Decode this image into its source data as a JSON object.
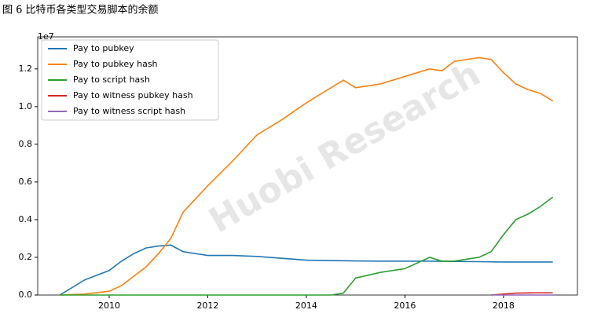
{
  "chart_data": {
    "type": "line",
    "title": "图 6 比特币各类型交易脚本的余额",
    "y_offset_label": "1e7",
    "watermark": "Huobi Research",
    "x": [
      2009,
      2009.5,
      2010,
      2010.25,
      2010.5,
      2010.75,
      2011,
      2011.25,
      2011.5,
      2011.75,
      2012,
      2012.5,
      2013,
      2013.5,
      2014,
      2014.5,
      2014.75,
      2015,
      2015.5,
      2016,
      2016.5,
      2016.75,
      2017,
      2017.5,
      2017.75,
      2018,
      2018.25,
      2018.5,
      2018.75,
      2019
    ],
    "series": [
      {
        "name": "Pay to pubkey",
        "color": "#1f77b4",
        "values": [
          0,
          0.08,
          0.13,
          0.18,
          0.22,
          0.25,
          0.26,
          0.265,
          0.23,
          0.22,
          0.21,
          0.21,
          0.205,
          0.195,
          0.185,
          0.183,
          0.182,
          0.181,
          0.18,
          0.18,
          0.18,
          0.179,
          0.178,
          0.177,
          0.176,
          0.175,
          0.175,
          0.175,
          0.175,
          0.175
        ]
      },
      {
        "name": "Pay to pubkey hash",
        "color": "#ff7f0e",
        "values": [
          0,
          0.005,
          0.02,
          0.05,
          0.1,
          0.15,
          0.22,
          0.3,
          0.44,
          0.51,
          0.58,
          0.71,
          0.85,
          0.93,
          1.02,
          1.1,
          1.14,
          1.1,
          1.12,
          1.16,
          1.2,
          1.19,
          1.24,
          1.26,
          1.25,
          1.18,
          1.12,
          1.09,
          1.07,
          1.03
        ]
      },
      {
        "name": "Pay to script hash",
        "color": "#2ca02c",
        "values": [
          0,
          0,
          0,
          0,
          0,
          0,
          0,
          0,
          0,
          0,
          0,
          0,
          0,
          0,
          0,
          0,
          0.01,
          0.09,
          0.12,
          0.14,
          0.2,
          0.18,
          0.18,
          0.2,
          0.23,
          0.32,
          0.4,
          0.43,
          0.47,
          0.52
        ]
      },
      {
        "name": "Pay to witness pubkey hash",
        "color": "#d62728",
        "values": [
          null,
          null,
          null,
          null,
          null,
          null,
          null,
          null,
          null,
          null,
          null,
          null,
          null,
          null,
          null,
          null,
          null,
          null,
          null,
          null,
          null,
          null,
          null,
          null,
          0,
          0.005,
          0.01,
          0.011,
          0.012,
          0.012
        ]
      },
      {
        "name": "Pay to witness script hash",
        "color": "#9467bd",
        "values": [
          null,
          null,
          null,
          null,
          null,
          null,
          null,
          null,
          null,
          null,
          null,
          null,
          null,
          null,
          null,
          null,
          null,
          null,
          null,
          null,
          null,
          null,
          null,
          null,
          0,
          0,
          0,
          0,
          0,
          0
        ]
      }
    ],
    "xlim": [
      2008.55,
      2019.5
    ],
    "ylim": [
      0,
      1.37
    ],
    "xticks": [
      2010,
      2012,
      2014,
      2016,
      2018
    ],
    "yticks": [
      {
        "value": 0,
        "label": "0.0"
      },
      {
        "value": 0.2,
        "label": "0.2"
      },
      {
        "value": 0.4,
        "label": "0.4"
      },
      {
        "value": 0.6,
        "label": "0.6"
      },
      {
        "value": 0.8,
        "label": "0.8"
      },
      {
        "value": 1.0,
        "label": "1.0"
      },
      {
        "value": 1.2,
        "label": "1.2"
      }
    ],
    "legend": "upper-left"
  }
}
